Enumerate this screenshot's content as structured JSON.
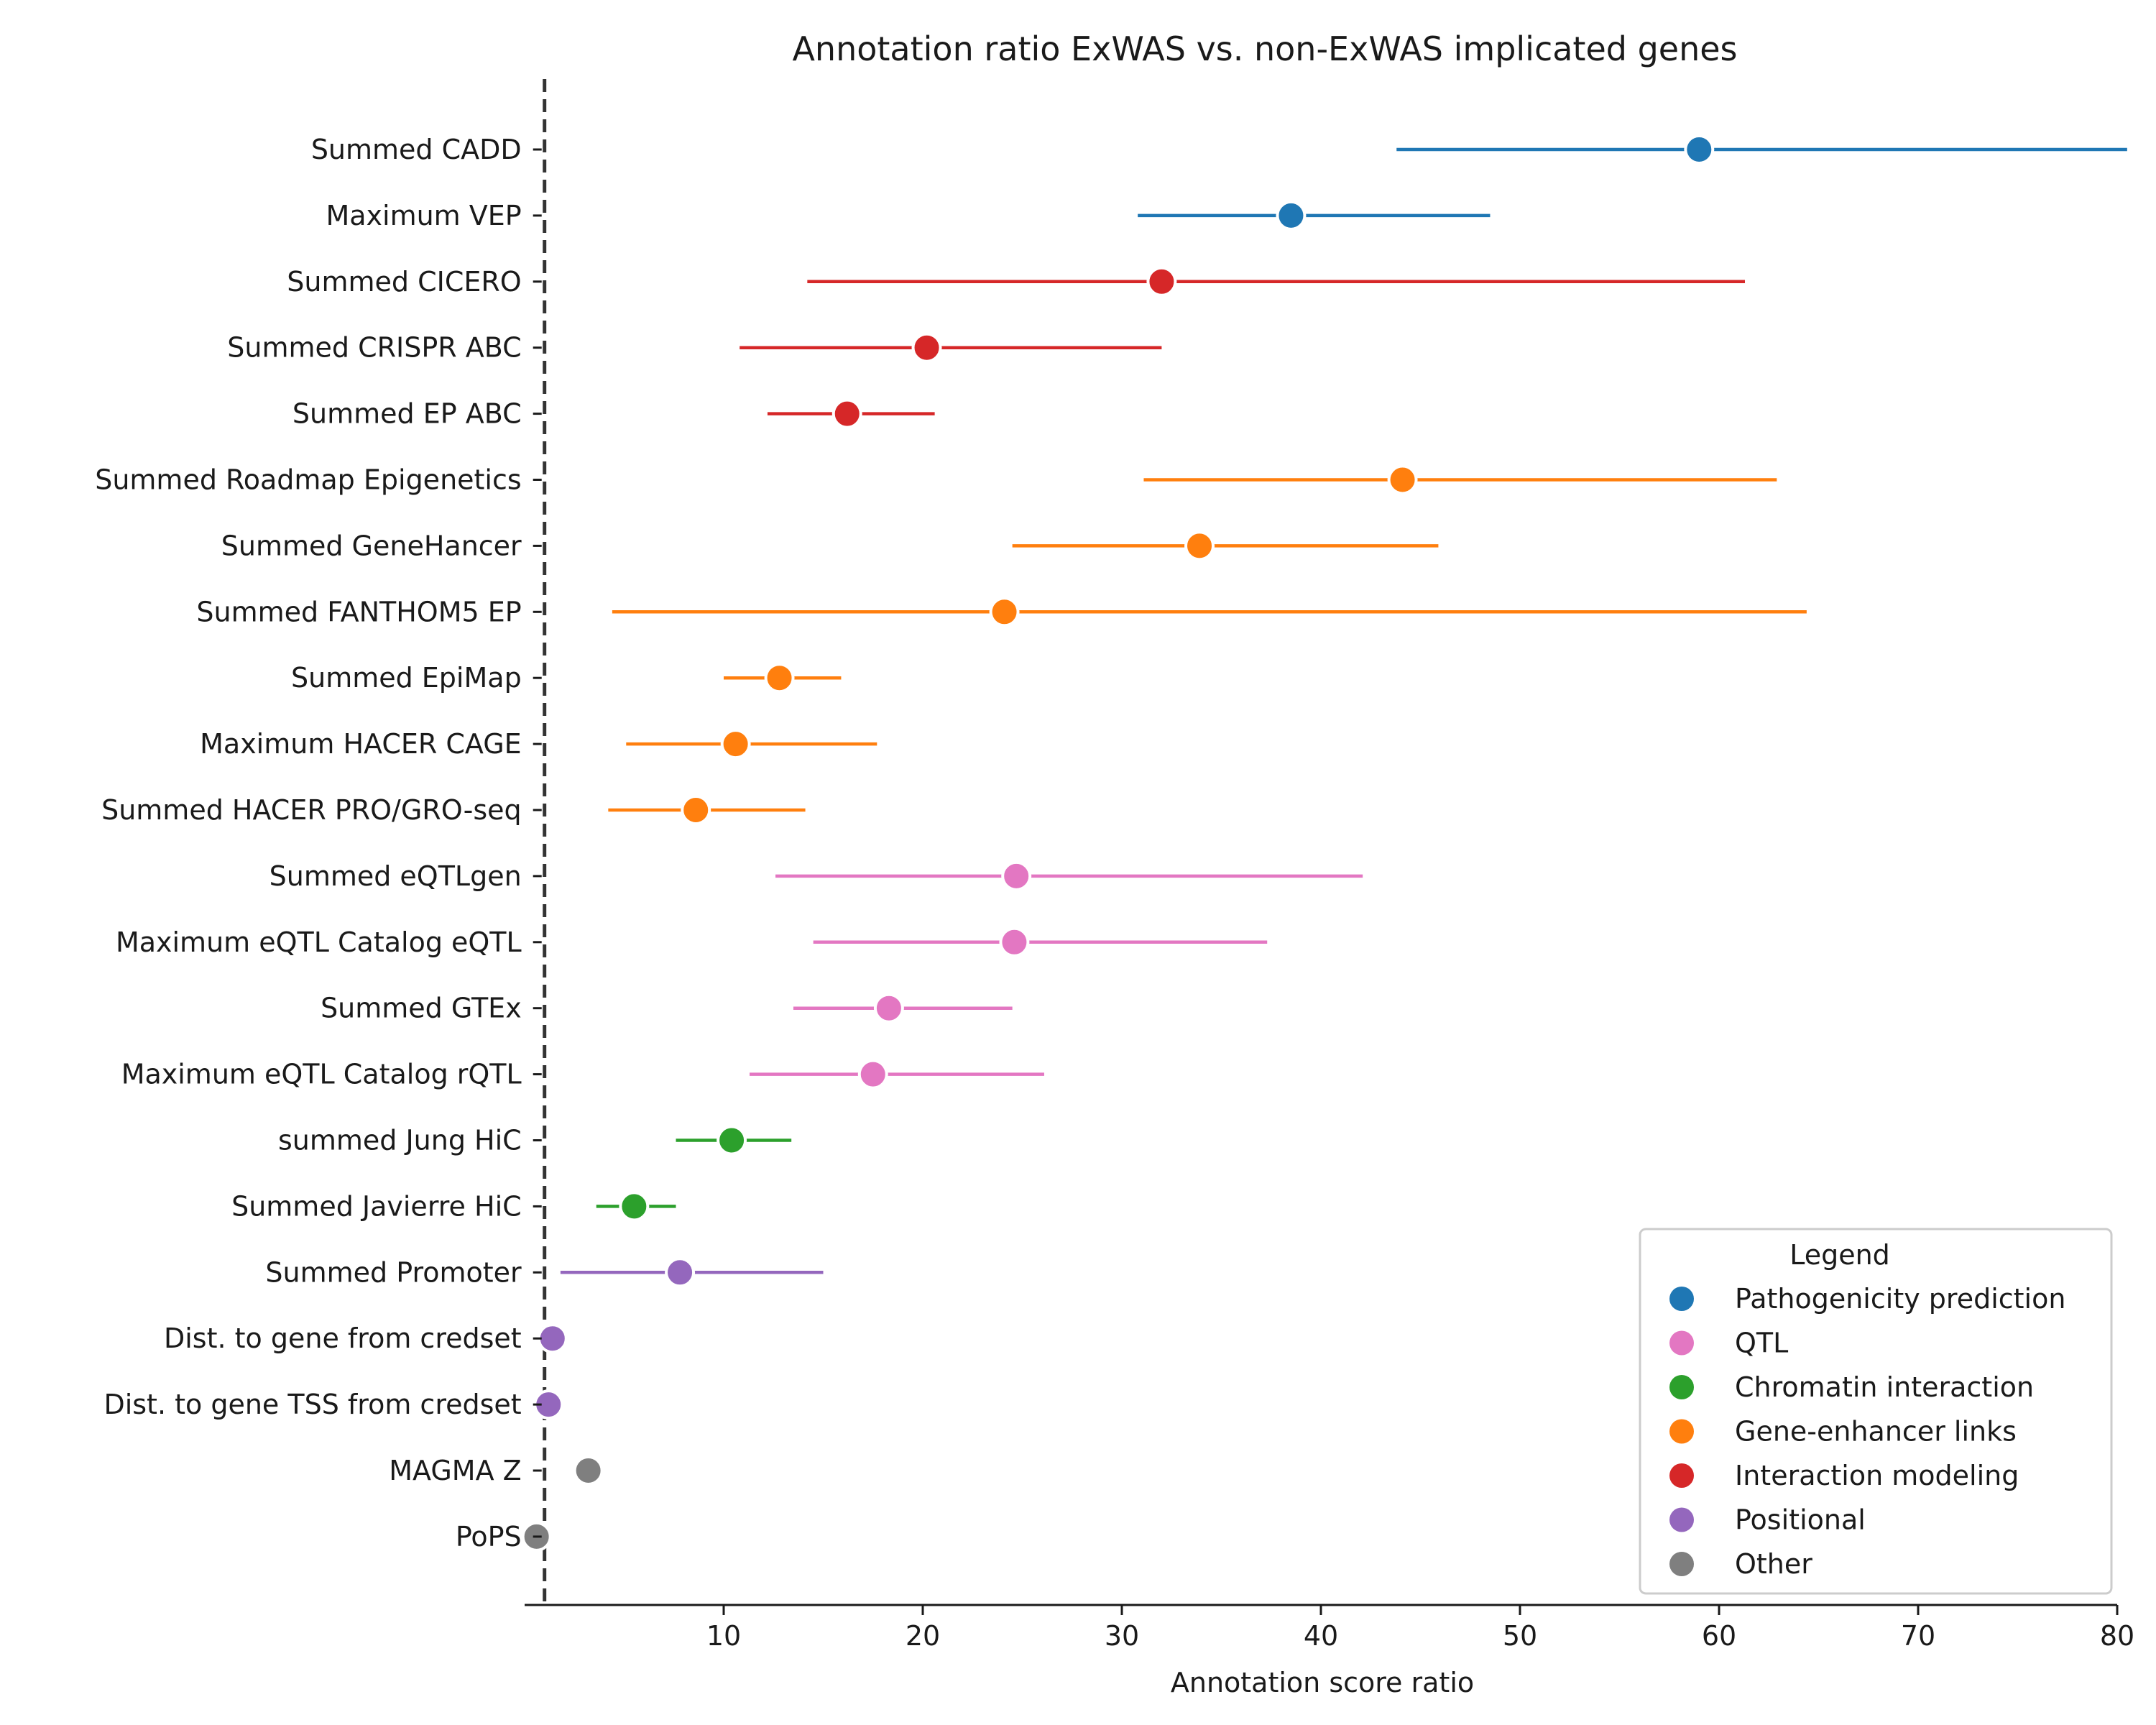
{
  "chart_data": {
    "type": "scatter",
    "subtype": "forest-plot",
    "title": "Annotation ratio ExWAS vs. non-ExWAS implicated genes",
    "xlabel": "Annotation score ratio",
    "ylabel": "",
    "xlim": [
      0,
      80
    ],
    "xticks": [
      10,
      20,
      30,
      40,
      50,
      60,
      70,
      80
    ],
    "reference_line": 1,
    "grid": false,
    "legend": {
      "title": "Legend",
      "placement": "bottom-right",
      "entries": [
        {
          "label": "Pathogenicity prediction",
          "color": "#1f77b4"
        },
        {
          "label": "QTL",
          "color": "#e377c2"
        },
        {
          "label": "Chromatin interaction",
          "color": "#2ca02c"
        },
        {
          "label": "Gene-enhancer links",
          "color": "#ff7f0e"
        },
        {
          "label": "Interaction modeling",
          "color": "#d62728"
        },
        {
          "label": "Positional",
          "color": "#9467bd"
        },
        {
          "label": "Other",
          "color": "#7f7f7f"
        }
      ]
    },
    "series": [
      {
        "label": "Summed CADD",
        "category": "Pathogenicity prediction",
        "value": 59.0,
        "ci": [
          43.8,
          80.5
        ]
      },
      {
        "label": "Maximum VEP",
        "category": "Pathogenicity prediction",
        "value": 38.5,
        "ci": [
          30.8,
          48.5
        ]
      },
      {
        "label": "Summed CICERO",
        "category": "Interaction modeling",
        "value": 32.0,
        "ci": [
          14.2,
          61.3
        ]
      },
      {
        "label": "Summed CRISPR ABC",
        "category": "Interaction modeling",
        "value": 20.2,
        "ci": [
          10.8,
          32.0
        ]
      },
      {
        "label": "Summed EP ABC",
        "category": "Interaction modeling",
        "value": 16.2,
        "ci": [
          12.2,
          20.6
        ]
      },
      {
        "label": "Summed Roadmap Epigenetics",
        "category": "Gene-enhancer links",
        "value": 44.1,
        "ci": [
          31.1,
          62.9
        ]
      },
      {
        "label": "Summed GeneHancer",
        "category": "Gene-enhancer links",
        "value": 33.9,
        "ci": [
          24.5,
          45.9
        ]
      },
      {
        "label": "Summed FANTHOM5 EP",
        "category": "Gene-enhancer links",
        "value": 24.1,
        "ci": [
          4.4,
          64.4
        ]
      },
      {
        "label": "Summed EpiMap",
        "category": "Gene-enhancer links",
        "value": 12.8,
        "ci": [
          10.0,
          15.9
        ]
      },
      {
        "label": "Maximum HACER CAGE",
        "category": "Gene-enhancer links",
        "value": 10.6,
        "ci": [
          5.1,
          17.7
        ]
      },
      {
        "label": "Summed HACER PRO/GRO-seq",
        "category": "Gene-enhancer links",
        "value": 8.6,
        "ci": [
          4.2,
          14.1
        ]
      },
      {
        "label": "Summed eQTLgen",
        "category": "QTL",
        "value": 24.7,
        "ci": [
          12.6,
          42.1
        ]
      },
      {
        "label": "Maximum eQTL Catalog eQTL",
        "category": "QTL",
        "value": 24.6,
        "ci": [
          14.5,
          37.3
        ]
      },
      {
        "label": "Summed GTEx",
        "category": "QTL",
        "value": 18.3,
        "ci": [
          13.5,
          24.5
        ]
      },
      {
        "label": "Maximum eQTL Catalog rQTL",
        "category": "QTL",
        "value": 17.5,
        "ci": [
          11.3,
          26.1
        ]
      },
      {
        "label": "summed Jung HiC",
        "category": "Chromatin interaction",
        "value": 10.4,
        "ci": [
          7.6,
          13.4
        ]
      },
      {
        "label": "Summed Javierre HiC",
        "category": "Chromatin interaction",
        "value": 5.5,
        "ci": [
          3.6,
          7.6
        ]
      },
      {
        "label": "Summed Promoter",
        "category": "Positional",
        "value": 7.8,
        "ci": [
          1.8,
          15.0
        ]
      },
      {
        "label": "Dist. to gene from credset",
        "category": "Positional",
        "value": 1.4,
        "ci": null
      },
      {
        "label": "Dist. to gene TSS from credset",
        "category": "Positional",
        "value": 1.2,
        "ci": null
      },
      {
        "label": "MAGMA Z",
        "category": "Other",
        "value": 3.2,
        "ci": null
      },
      {
        "label": "PoPS",
        "category": "Other",
        "value": 0.6,
        "ci": null
      }
    ]
  }
}
